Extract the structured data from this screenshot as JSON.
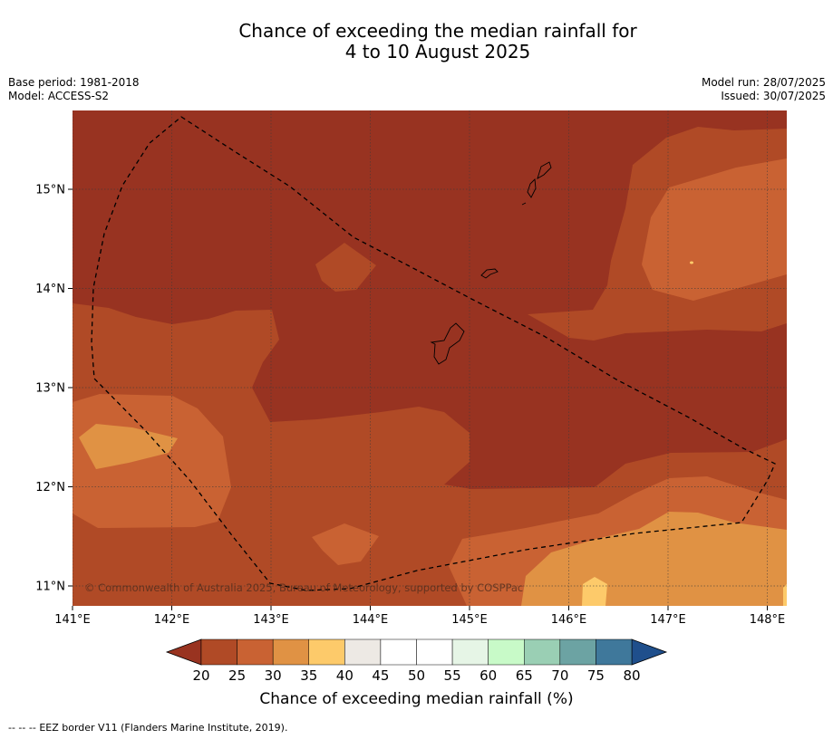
{
  "title": {
    "line1": "Chance of exceeding the median rainfall for",
    "line2": "4 to 10 August 2025"
  },
  "header": {
    "base_period": "Base period: 1981-2018",
    "model": "Model: ACCESS-S2",
    "model_run": "Model run: 28/07/2025",
    "issued": "Issued: 30/07/2025"
  },
  "map": {
    "lon_ticks": [
      "141°E",
      "142°E",
      "143°E",
      "144°E",
      "145°E",
      "146°E",
      "147°E",
      "148°E"
    ],
    "lat_ticks": [
      "15°N",
      "14°N",
      "13°N",
      "12°N",
      "11°N"
    ],
    "copyright": "© Commonwealth of Australia 2025, Bureau of Meteorology, supported by COSPPac"
  },
  "colorbar": {
    "ticks": [
      "20",
      "25",
      "30",
      "35",
      "40",
      "45",
      "50",
      "55",
      "60",
      "65",
      "70",
      "75",
      "80"
    ],
    "colors": [
      "#b04a26",
      "#c96233",
      "#e09244",
      "#fdca6a",
      "#ede9e4",
      "#ffffff",
      "#ffffff",
      "#e6f5e6",
      "#c8fac8",
      "#9acfb4",
      "#6ca3a3",
      "#3f789b"
    ],
    "under_color": "#993320",
    "over_color": "#1f4f8c",
    "label": "Chance of exceeding median rainfall (%)"
  },
  "palette": {
    "lt20": "#983321",
    "p20_25": "#b04a26",
    "p25_30": "#c96233",
    "p30_35": "#e09244",
    "p35_40": "#fdca6a"
  },
  "footer": {
    "legend_dash": "--  --  --",
    "legend_text": "EEZ border V11 (Flanders Marine Institute, 2019)."
  }
}
